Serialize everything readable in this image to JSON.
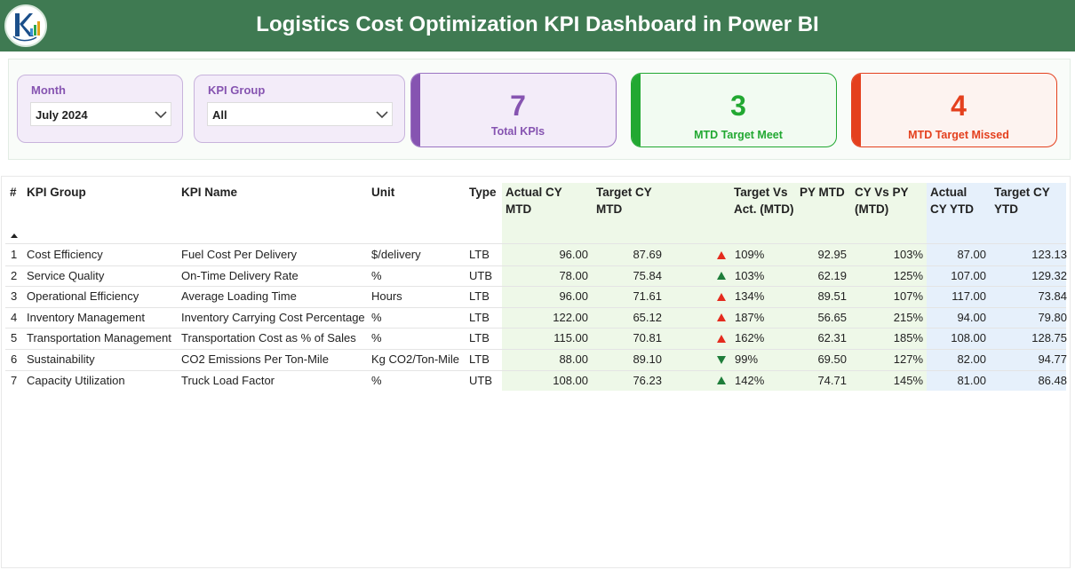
{
  "header": {
    "title": "Logistics Cost Optimization KPI Dashboard in Power BI",
    "logo_icon": "rk-chart-logo-icon",
    "color": "#3f7a52"
  },
  "filters": {
    "month": {
      "label": "Month",
      "value": "July 2024"
    },
    "kpi_group": {
      "label": "KPI Group",
      "value": "All"
    }
  },
  "cards": {
    "total": {
      "value": "7",
      "label": "Total KPIs",
      "color": "#8654b1"
    },
    "met": {
      "value": "3",
      "label": "MTD Target Meet",
      "color": "#22a832"
    },
    "missed": {
      "value": "4",
      "label": "MTD Target Missed",
      "color": "#e4401e"
    }
  },
  "table": {
    "columns": {
      "num": "#",
      "group": "KPI Group",
      "name": "KPI Name",
      "unit": "Unit",
      "type": "Type",
      "actual_mtd": "Actual CY MTD",
      "target_mtd": "Target CY MTD",
      "tva": "Target Vs Act. (MTD)",
      "py_mtd": "PY MTD",
      "cy_vs_py": "CY Vs PY (MTD)",
      "actual_ytd": "Actual CY YTD",
      "target_ytd": "Target CY YTD"
    },
    "sort_indicator": "ascending",
    "rows": [
      {
        "num": "1",
        "group": "Cost Efficiency",
        "name": "Fuel Cost Per Delivery",
        "unit": "$/delivery",
        "type": "LTB",
        "actual_mtd": "96.00",
        "target_mtd": "87.69",
        "status": "up-red",
        "tva": "109%",
        "py_mtd": "92.95",
        "cy_vs_py": "103%",
        "actual_ytd": "87.00",
        "target_ytd": "123.13"
      },
      {
        "num": "2",
        "group": "Service Quality",
        "name": "On-Time Delivery Rate",
        "unit": "%",
        "type": "UTB",
        "actual_mtd": "78.00",
        "target_mtd": "75.84",
        "status": "up-green",
        "tva": "103%",
        "py_mtd": "62.19",
        "cy_vs_py": "125%",
        "actual_ytd": "107.00",
        "target_ytd": "129.32"
      },
      {
        "num": "3",
        "group": "Operational Efficiency",
        "name": "Average Loading Time",
        "unit": "Hours",
        "type": "LTB",
        "actual_mtd": "96.00",
        "target_mtd": "71.61",
        "status": "up-red",
        "tva": "134%",
        "py_mtd": "89.51",
        "cy_vs_py": "107%",
        "actual_ytd": "117.00",
        "target_ytd": "73.84"
      },
      {
        "num": "4",
        "group": "Inventory Management",
        "name": "Inventory Carrying Cost Percentage",
        "unit": "%",
        "type": "LTB",
        "actual_mtd": "122.00",
        "target_mtd": "65.12",
        "status": "up-red",
        "tva": "187%",
        "py_mtd": "56.65",
        "cy_vs_py": "215%",
        "actual_ytd": "94.00",
        "target_ytd": "79.80"
      },
      {
        "num": "5",
        "group": "Transportation Management",
        "name": "Transportation Cost as % of Sales",
        "unit": "%",
        "type": "LTB",
        "actual_mtd": "115.00",
        "target_mtd": "70.81",
        "status": "up-red",
        "tva": "162%",
        "py_mtd": "62.31",
        "cy_vs_py": "185%",
        "actual_ytd": "108.00",
        "target_ytd": "128.75"
      },
      {
        "num": "6",
        "group": "Sustainability",
        "name": "CO2 Emissions Per Ton-Mile",
        "unit": "Kg CO2/Ton-Mile",
        "type": "LTB",
        "actual_mtd": "88.00",
        "target_mtd": "89.10",
        "status": "down-green",
        "tva": "99%",
        "py_mtd": "69.50",
        "cy_vs_py": "127%",
        "actual_ytd": "82.00",
        "target_ytd": "94.77"
      },
      {
        "num": "7",
        "group": "Capacity Utilization",
        "name": "Truck Load Factor",
        "unit": "%",
        "type": "UTB",
        "actual_mtd": "108.00",
        "target_mtd": "76.23",
        "status": "up-green",
        "tva": "142%",
        "py_mtd": "74.71",
        "cy_vs_py": "145%",
        "actual_ytd": "81.00",
        "target_ytd": "86.48"
      }
    ],
    "colors": {
      "mtd_band": "#eef8e8",
      "ytd_band": "#e6f0fb",
      "up_red": "#e42b1e",
      "up_green": "#1e7d3a",
      "down_green": "#1e7d3a"
    }
  }
}
